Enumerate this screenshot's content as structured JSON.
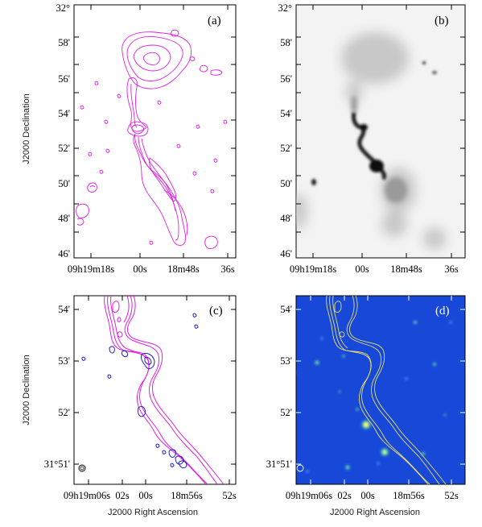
{
  "panels": {
    "a": {
      "label": "(a)",
      "dec_ticks": [
        "32°",
        "58'",
        "56'",
        "54'",
        "52'",
        "50'",
        "48'",
        "46'"
      ],
      "ra_ticks": [
        "09h19m18s",
        "00s",
        "18m48s",
        "36s"
      ],
      "ylabel": "J2000 Declination",
      "contour_color": "#e020e0"
    },
    "b": {
      "label": "(b)",
      "dec_ticks": [
        "32°",
        "58'",
        "56'",
        "54'",
        "52'",
        "50'",
        "48'",
        "46'"
      ],
      "ra_ticks": [
        "09h19m18s",
        "00s",
        "18m48s",
        "36s"
      ]
    },
    "c": {
      "label": "(c)",
      "dec_ticks": [
        "54'",
        "53'",
        "52'",
        "31°51'"
      ],
      "ra_ticks": [
        "09h19m06s",
        "02s",
        "00s",
        "18m56s",
        "52s"
      ],
      "ylabel": "J2000 Declination",
      "xlabel": "J2000 Right Ascension",
      "contour_colors": [
        "#e020e0",
        "#2020c0"
      ]
    },
    "d": {
      "label": "(d)",
      "dec_ticks": [
        "54'",
        "53'",
        "52'",
        "31°51'"
      ],
      "ra_ticks": [
        "09h19m06s",
        "02s",
        "00s",
        "18m56s",
        "52s"
      ],
      "xlabel": "J2000 Right Ascension",
      "background_color": "#1848d8",
      "contour_color": "#e8e070"
    }
  }
}
